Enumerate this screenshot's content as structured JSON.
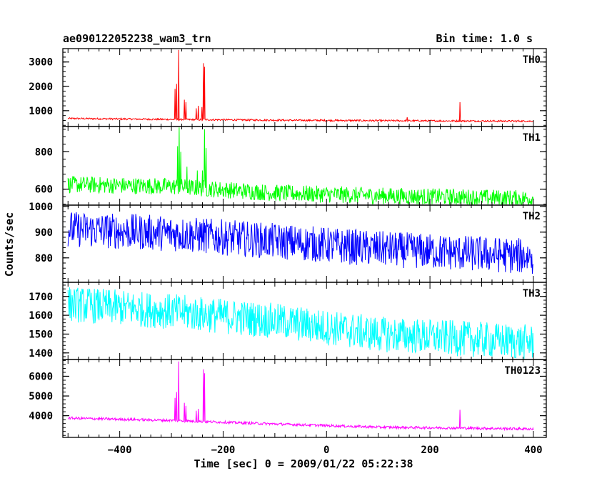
{
  "chart_data": {
    "type": "line",
    "title_left": "ae090122052238_wam3_trn",
    "title_right": "Bin time: 1.0 s",
    "xlabel": "Time [sec] 0 = 2009/01/22 05:22:38",
    "ylabel": "Counts/sec",
    "xlim": [
      -510,
      425
    ],
    "x_ticks": [
      -400,
      -200,
      0,
      200,
      400
    ],
    "x_tick_labels": [
      "−400",
      "−200",
      "0",
      "200",
      "400"
    ],
    "panels": [
      {
        "name": "TH0",
        "color": "#ff0000",
        "ylim": [
          350,
          3550
        ],
        "y_ticks": [
          1000,
          2000,
          3000
        ],
        "y_tick_labels": [
          "1000",
          "2000",
          "3000"
        ],
        "baseline": [
          [
            -500,
            680
          ],
          [
            -300,
            640
          ],
          [
            -100,
            610
          ],
          [
            100,
            590
          ],
          [
            300,
            575
          ],
          [
            400,
            570
          ]
        ],
        "noise": 35,
        "spikes": [
          [
            -293,
            1900
          ],
          [
            -290,
            2100
          ],
          [
            -286,
            3500
          ],
          [
            -275,
            1450
          ],
          [
            -272,
            1350
          ],
          [
            -252,
            1100
          ],
          [
            -248,
            1200
          ],
          [
            -241,
            1150
          ],
          [
            -238,
            2950
          ],
          [
            -236,
            2800
          ],
          [
            156,
            730
          ],
          [
            258,
            1350
          ]
        ]
      },
      {
        "name": "TH1",
        "color": "#00ff00",
        "ylim": [
          515,
          935
        ],
        "y_ticks": [
          600,
          800
        ],
        "y_tick_labels": [
          "600",
          "800"
        ],
        "baseline": [
          [
            -500,
            625
          ],
          [
            -300,
            615
          ],
          [
            -100,
            580
          ],
          [
            100,
            565
          ],
          [
            300,
            555
          ],
          [
            400,
            550
          ]
        ],
        "noise": 45,
        "spikes": [
          [
            -288,
            830
          ],
          [
            -285,
            930
          ],
          [
            -282,
            800
          ],
          [
            -270,
            720
          ],
          [
            -250,
            700
          ],
          [
            -240,
            700
          ],
          [
            -236,
            920
          ],
          [
            -233,
            820
          ]
        ]
      },
      {
        "name": "TH2",
        "color": "#0000ff",
        "ylim": [
          705,
          1005
        ],
        "y_ticks": [
          800,
          900,
          1000
        ],
        "y_tick_labels": [
          "800",
          "900",
          "1000"
        ],
        "baseline": [
          [
            -500,
            912
          ],
          [
            -300,
            895
          ],
          [
            -100,
            865
          ],
          [
            100,
            835
          ],
          [
            300,
            815
          ],
          [
            400,
            805
          ]
        ],
        "noise": 70,
        "spikes": []
      },
      {
        "name": "TH3",
        "color": "#00ffff",
        "ylim": [
          1365,
          1775
        ],
        "y_ticks": [
          1400,
          1500,
          1600,
          1700
        ],
        "y_tick_labels": [
          "1400",
          "1500",
          "1600",
          "1700"
        ],
        "baseline": [
          [
            -500,
            1660
          ],
          [
            -300,
            1620
          ],
          [
            -100,
            1570
          ],
          [
            100,
            1500
          ],
          [
            300,
            1470
          ],
          [
            400,
            1455
          ]
        ],
        "noise": 95,
        "spikes": []
      },
      {
        "name": "TH0123",
        "color": "#ff00ff",
        "ylim": [
          2900,
          6850
        ],
        "y_ticks": [
          4000,
          5000,
          6000
        ],
        "y_tick_labels": [
          "4000",
          "5000",
          "6000"
        ],
        "baseline": [
          [
            -500,
            3880
          ],
          [
            -300,
            3760
          ],
          [
            -100,
            3580
          ],
          [
            100,
            3420
          ],
          [
            300,
            3360
          ],
          [
            400,
            3330
          ]
        ],
        "noise": 65,
        "spikes": [
          [
            -293,
            4900
          ],
          [
            -290,
            5200
          ],
          [
            -286,
            6750
          ],
          [
            -275,
            4650
          ],
          [
            -272,
            4500
          ],
          [
            -252,
            4250
          ],
          [
            -248,
            4350
          ],
          [
            -238,
            6350
          ],
          [
            -236,
            6150
          ],
          [
            258,
            4300
          ]
        ]
      }
    ]
  }
}
